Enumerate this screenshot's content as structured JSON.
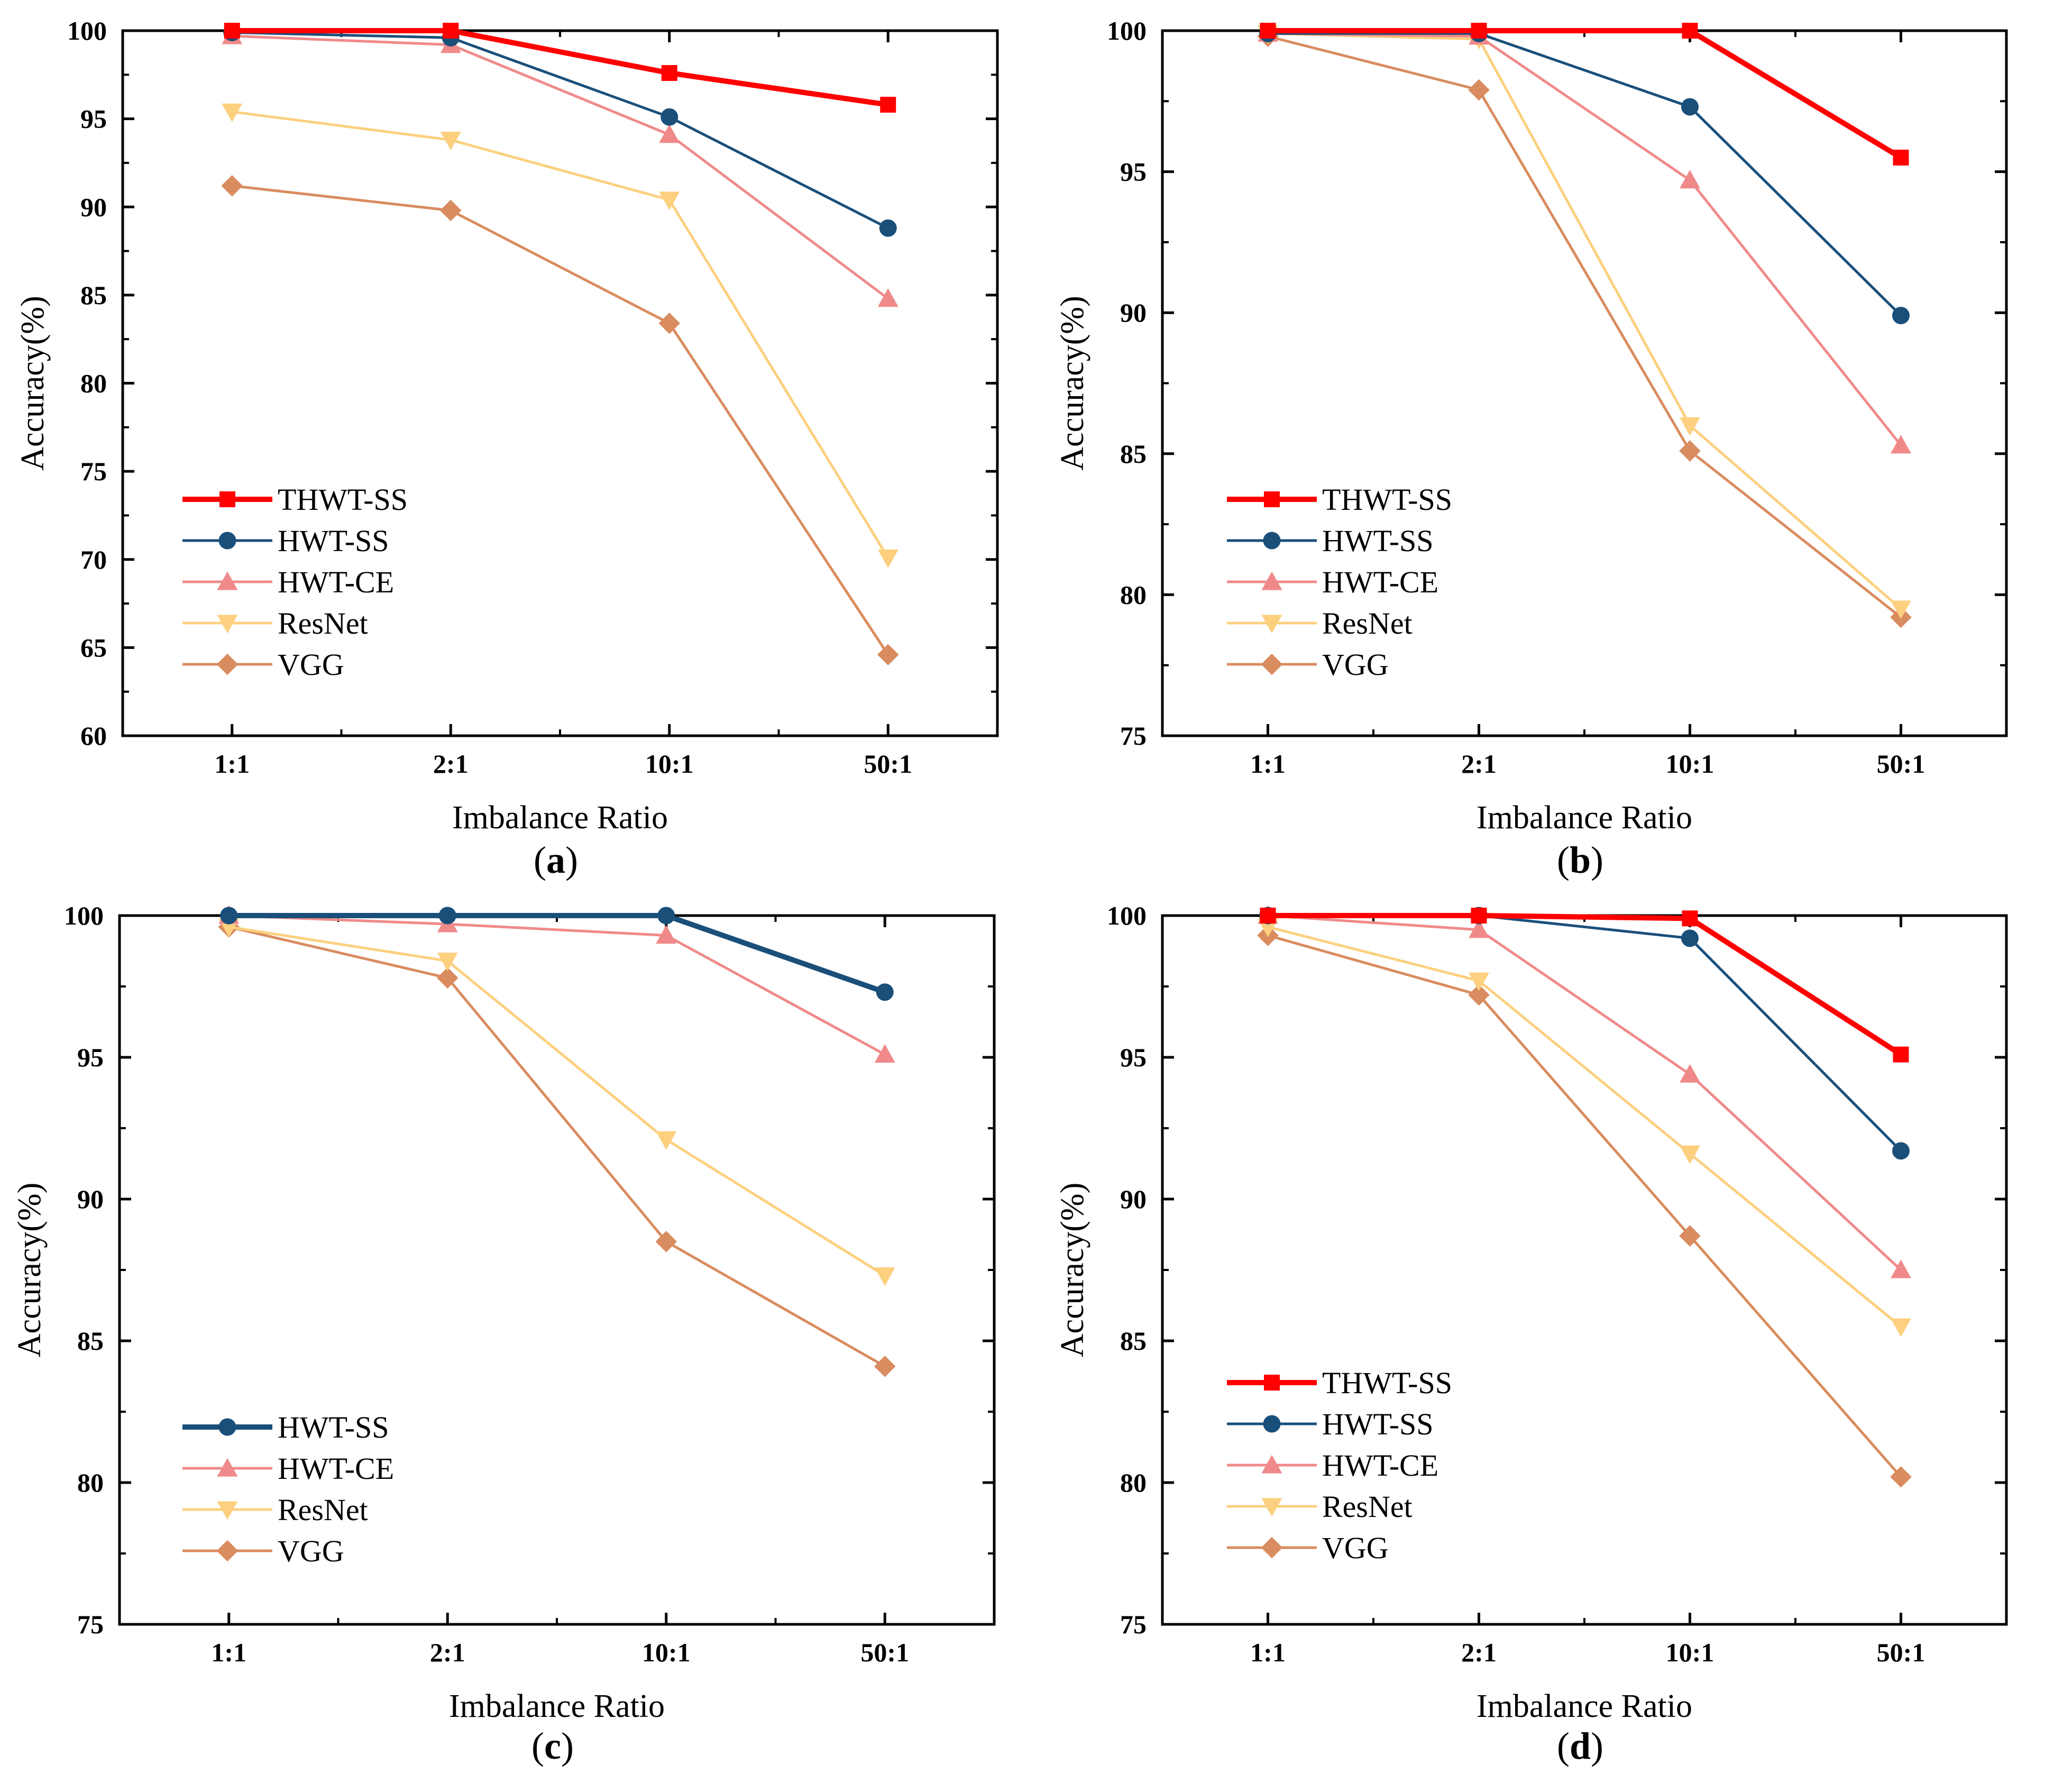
{
  "figure": {
    "series_colors": {
      "THWT-SS": "#ff0000",
      "HWT-SS": "#1a4f7a",
      "HWT-CE": "#f08a8a",
      "ResNet": "#fcd07f",
      "VGG": "#d98c5f"
    }
  },
  "chart_data": [
    {
      "type": "line",
      "panel_label": "a",
      "title": "",
      "xlabel": "Imbalance Ratio",
      "ylabel": "Accuracy(%)",
      "categories": [
        "1:1",
        "2:1",
        "10:1",
        "50:1"
      ],
      "ylim": [
        60,
        100
      ],
      "yticks": [
        60,
        65,
        70,
        75,
        80,
        85,
        90,
        95,
        100
      ],
      "legend_position": "bottom-left",
      "series": [
        {
          "name": "THWT-SS",
          "marker": "square",
          "values": [
            100.0,
            100.0,
            97.6,
            95.8
          ]
        },
        {
          "name": "HWT-SS",
          "marker": "circle",
          "values": [
            99.9,
            99.6,
            95.1,
            88.8
          ]
        },
        {
          "name": "HWT-CE",
          "marker": "triangle-up",
          "values": [
            99.7,
            99.2,
            94.1,
            84.8
          ]
        },
        {
          "name": "ResNet",
          "marker": "triangle-down",
          "values": [
            95.4,
            93.8,
            90.4,
            70.1
          ]
        },
        {
          "name": "VGG",
          "marker": "diamond",
          "values": [
            91.2,
            89.8,
            83.4,
            64.6
          ]
        }
      ]
    },
    {
      "type": "line",
      "panel_label": "b",
      "title": "",
      "xlabel": "Imbalance Ratio",
      "ylabel": "Accuracy(%)",
      "categories": [
        "1:1",
        "2:1",
        "10:1",
        "50:1"
      ],
      "ylim": [
        75,
        100
      ],
      "yticks": [
        75,
        80,
        85,
        90,
        95,
        100
      ],
      "legend_position": "bottom-left",
      "series": [
        {
          "name": "THWT-SS",
          "marker": "square",
          "values": [
            100.0,
            100.0,
            100.0,
            95.5
          ]
        },
        {
          "name": "HWT-SS",
          "marker": "circle",
          "values": [
            99.9,
            99.9,
            97.3,
            89.9
          ]
        },
        {
          "name": "HWT-CE",
          "marker": "triangle-up",
          "values": [
            99.9,
            99.8,
            94.7,
            85.3
          ]
        },
        {
          "name": "ResNet",
          "marker": "triangle-down",
          "values": [
            99.9,
            99.7,
            86.0,
            79.5
          ]
        },
        {
          "name": "VGG",
          "marker": "diamond",
          "values": [
            99.8,
            97.9,
            85.1,
            79.2
          ]
        }
      ]
    },
    {
      "type": "line",
      "panel_label": "c",
      "title": "",
      "xlabel": "Imbalance Ratio",
      "ylabel": "Accuracy(%)",
      "categories": [
        "1:1",
        "2:1",
        "10:1",
        "50:1"
      ],
      "ylim": [
        75,
        100
      ],
      "yticks": [
        75,
        80,
        85,
        90,
        95,
        100
      ],
      "legend_position": "bottom-left",
      "series": [
        {
          "name": "HWT-SS",
          "marker": "circle",
          "thick": true,
          "values": [
            100.0,
            100.0,
            100.0,
            97.3
          ]
        },
        {
          "name": "HWT-CE",
          "marker": "triangle-up",
          "values": [
            100.0,
            99.7,
            99.3,
            95.1
          ]
        },
        {
          "name": "ResNet",
          "marker": "triangle-down",
          "values": [
            99.6,
            98.4,
            92.1,
            87.3
          ]
        },
        {
          "name": "VGG",
          "marker": "diamond",
          "values": [
            99.6,
            97.8,
            88.5,
            84.1
          ]
        }
      ]
    },
    {
      "type": "line",
      "panel_label": "d",
      "title": "",
      "xlabel": "Imbalance Ratio",
      "ylabel": "Accuracy(%)",
      "categories": [
        "1:1",
        "2:1",
        "10:1",
        "50:1"
      ],
      "ylim": [
        75,
        100
      ],
      "yticks": [
        75,
        80,
        85,
        90,
        95,
        100
      ],
      "legend_position": "bottom-left",
      "series": [
        {
          "name": "THWT-SS",
          "marker": "square",
          "values": [
            100.0,
            100.0,
            99.9,
            95.1
          ]
        },
        {
          "name": "HWT-SS",
          "marker": "circle",
          "values": [
            100.0,
            100.0,
            99.2,
            91.7
          ]
        },
        {
          "name": "HWT-CE",
          "marker": "triangle-up",
          "values": [
            100.0,
            99.5,
            94.4,
            87.5
          ]
        },
        {
          "name": "ResNet",
          "marker": "triangle-down",
          "values": [
            99.6,
            97.7,
            91.6,
            85.5
          ]
        },
        {
          "name": "VGG",
          "marker": "diamond",
          "values": [
            99.3,
            97.2,
            88.7,
            80.2
          ]
        }
      ]
    }
  ]
}
